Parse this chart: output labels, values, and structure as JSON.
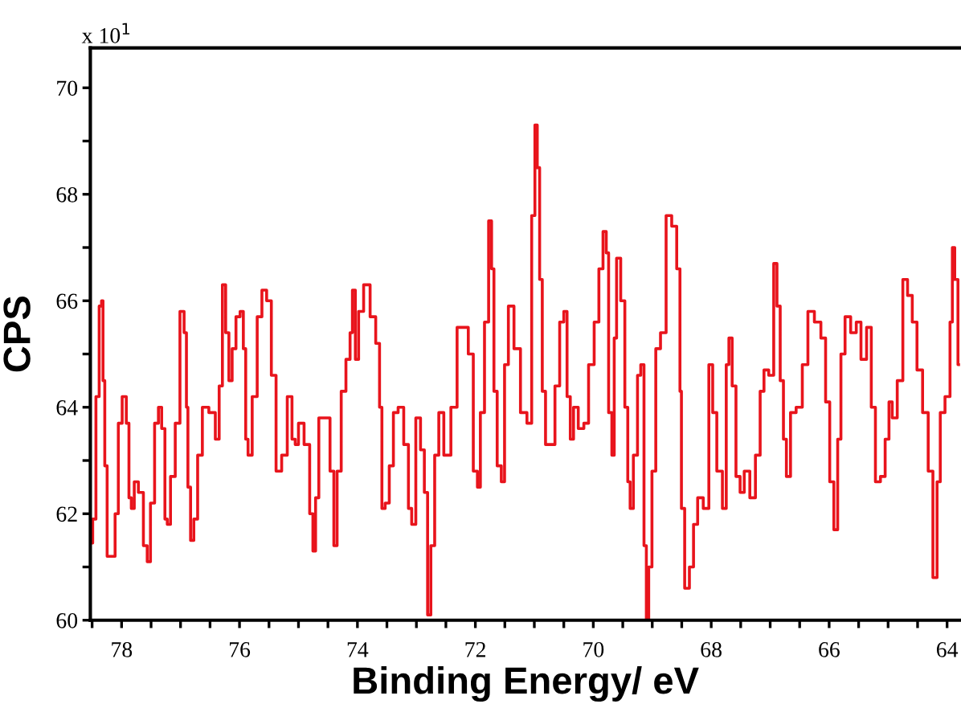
{
  "chart_data": {
    "type": "line",
    "xlabel": "Binding Energy/ eV",
    "ylabel": "CPS",
    "annotations": [
      "x 10$^{1}$"
    ],
    "xlim": [
      78.53,
      63.78
    ],
    "ylim": [
      60,
      70.75
    ],
    "xticks": [
      {
        "value": 78.5,
        "label": null
      },
      78,
      {
        "value": 77.5,
        "label": null
      },
      {
        "value": 77,
        "label": null
      },
      {
        "value": 76.5,
        "label": null
      },
      76,
      {
        "value": 75.5,
        "label": null
      },
      {
        "value": 75,
        "label": null
      },
      {
        "value": 74.5,
        "label": null
      },
      74,
      {
        "value": 73.5,
        "label": null
      },
      {
        "value": 73,
        "label": null
      },
      {
        "value": 72.5,
        "label": null
      },
      72,
      {
        "value": 71.5,
        "label": null
      },
      {
        "value": 71,
        "label": null
      },
      {
        "value": 70.5,
        "label": null
      },
      70,
      {
        "value": 69.5,
        "label": null
      },
      {
        "value": 69,
        "label": null
      },
      {
        "value": 68.5,
        "label": null
      },
      68,
      {
        "value": 67.5,
        "label": null
      },
      {
        "value": 67,
        "label": null
      },
      {
        "value": 66.5,
        "label": null
      },
      66,
      {
        "value": 65.5,
        "label": null
      },
      {
        "value": 65,
        "label": null
      },
      {
        "value": 64.5,
        "label": null
      },
      64
    ],
    "yticks": [
      60,
      {
        "value": 61,
        "label": null
      },
      62,
      {
        "value": 63,
        "label": null
      },
      64,
      {
        "value": 65,
        "label": null
      },
      66,
      {
        "value": 67,
        "label": null
      },
      68,
      {
        "value": 69,
        "label": null
      },
      70
    ],
    "grid": false,
    "legend": false,
    "marker": "none",
    "line_style": "solid",
    "series": [
      {
        "color": "#e8141c",
        "x": [
          78.52,
          78.46,
          78.41,
          78.35,
          78.33,
          78.3,
          78.27,
          78.22,
          78.14,
          78.08,
          78.03,
          77.95,
          77.89,
          77.86,
          77.81,
          77.76,
          77.67,
          77.59,
          77.54,
          77.48,
          77.4,
          77.35,
          77.29,
          77.24,
          77.21,
          77.13,
          77.05,
          76.97,
          76.91,
          76.89,
          76.86,
          76.8,
          76.75,
          76.67,
          76.59,
          76.45,
          76.37,
          76.32,
          76.26,
          76.21,
          76.15,
          76.1,
          76.02,
          75.96,
          75.91,
          75.88,
          75.83,
          75.74,
          75.66,
          75.58,
          75.5,
          75.42,
          75.34,
          75.23,
          75.15,
          75.07,
          75.04,
          74.96,
          74.85,
          74.77,
          74.74,
          74.68,
          74.63,
          74.52,
          74.41,
          74.39,
          74.3,
          74.25,
          74.14,
          74.11,
          74.06,
          74.01,
          73.95,
          73.84,
          73.73,
          73.65,
          73.6,
          73.57,
          73.49,
          73.43,
          73.35,
          73.27,
          73.16,
          73.11,
          73.05,
          72.97,
          72.89,
          72.84,
          72.78,
          72.73,
          72.65,
          72.59,
          72.48,
          72.35,
          72.27,
          72.16,
          72.08,
          71.99,
          71.94,
          71.89,
          71.8,
          71.75,
          71.7,
          71.67,
          71.59,
          71.53,
          71.48,
          71.4,
          71.29,
          71.18,
          71.07,
          71.02,
          70.96,
          70.94,
          70.88,
          70.85,
          70.77,
          70.69,
          70.61,
          70.53,
          70.47,
          70.42,
          70.36,
          70.31,
          70.2,
          70.12,
          70.04,
          69.93,
          69.88,
          69.79,
          69.77,
          69.71,
          69.66,
          69.63,
          69.58,
          69.49,
          69.44,
          69.39,
          69.36,
          69.28,
          69.22,
          69.17,
          69.11,
          69.09,
          69.03,
          68.98,
          68.9,
          68.82,
          68.71,
          68.63,
          68.54,
          68.52,
          68.49,
          68.41,
          68.33,
          68.27,
          68.19,
          68.08,
          68.0,
          67.95,
          67.86,
          67.76,
          67.73,
          67.67,
          67.62,
          67.54,
          67.48,
          67.4,
          67.29,
          67.21,
          67.13,
          67.08,
          66.97,
          66.91,
          66.86,
          66.8,
          66.75,
          66.7,
          66.61,
          66.51,
          66.4,
          66.32,
          66.18,
          66.1,
          66.02,
          65.96,
          65.88,
          65.83,
          65.77,
          65.69,
          65.58,
          65.5,
          65.42,
          65.31,
          65.26,
          65.17,
          65.09,
          65.01,
          64.96,
          64.9,
          64.79,
          64.71,
          64.63,
          64.55,
          64.47,
          64.36,
          64.28,
          64.2,
          64.14,
          64.09,
          63.98,
          63.92,
          63.9,
          63.84,
          63.79
        ],
        "values": [
          61.45,
          61.9,
          64.2,
          65.9,
          66.0,
          64.5,
          62.9,
          61.2,
          61.2,
          62.0,
          63.7,
          64.2,
          63.7,
          62.3,
          62.1,
          62.6,
          62.4,
          61.4,
          61.1,
          62.2,
          63.7,
          64.0,
          63.6,
          61.9,
          61.8,
          62.7,
          63.7,
          65.8,
          65.4,
          64.0,
          62.5,
          61.5,
          61.9,
          63.1,
          64.0,
          63.9,
          63.4,
          64.4,
          66.3,
          65.4,
          64.5,
          65.1,
          65.7,
          65.8,
          65.1,
          63.4,
          63.1,
          64.2,
          65.7,
          66.2,
          66.0,
          64.6,
          62.8,
          63.1,
          64.2,
          63.4,
          63.3,
          63.7,
          63.3,
          62.0,
          61.3,
          62.3,
          63.8,
          63.8,
          62.8,
          61.4,
          62.8,
          64.3,
          64.9,
          65.4,
          66.2,
          64.9,
          65.8,
          66.3,
          65.7,
          65.2,
          64.0,
          62.1,
          62.2,
          62.9,
          63.9,
          64.0,
          63.3,
          62.1,
          61.8,
          63.8,
          63.2,
          62.4,
          60.1,
          61.4,
          63.1,
          63.9,
          63.1,
          64.0,
          65.5,
          65.5,
          65.0,
          62.8,
          62.5,
          63.9,
          65.6,
          67.5,
          66.6,
          64.3,
          62.9,
          62.6,
          64.8,
          65.9,
          65.1,
          63.9,
          63.7,
          67.6,
          69.3,
          68.5,
          66.4,
          64.3,
          63.3,
          63.3,
          64.4,
          65.6,
          65.8,
          64.2,
          63.4,
          64.0,
          63.6,
          63.7,
          64.8,
          65.6,
          66.6,
          67.3,
          66.9,
          63.9,
          63.1,
          65.3,
          66.8,
          66.0,
          64.0,
          62.6,
          62.1,
          63.1,
          64.6,
          64.8,
          61.4,
          60.0,
          61.0,
          62.8,
          65.1,
          65.4,
          67.6,
          67.4,
          66.6,
          64.3,
          62.1,
          60.6,
          61.0,
          61.8,
          62.3,
          62.1,
          64.8,
          63.9,
          62.8,
          62.1,
          64.8,
          65.3,
          64.4,
          62.7,
          62.4,
          62.8,
          62.3,
          63.1,
          64.3,
          64.7,
          64.6,
          66.7,
          65.9,
          64.5,
          63.4,
          62.7,
          63.9,
          64.0,
          64.8,
          65.8,
          65.6,
          65.3,
          64.1,
          62.6,
          61.7,
          63.4,
          65.0,
          65.7,
          65.4,
          65.6,
          64.9,
          65.5,
          64.0,
          62.6,
          62.7,
          63.4,
          64.1,
          63.8,
          64.5,
          66.4,
          66.1,
          65.6,
          64.7,
          63.9,
          62.8,
          60.8,
          62.6,
          63.9,
          64.2,
          65.6,
          67.0,
          66.4,
          64.8
        ]
      }
    ]
  }
}
